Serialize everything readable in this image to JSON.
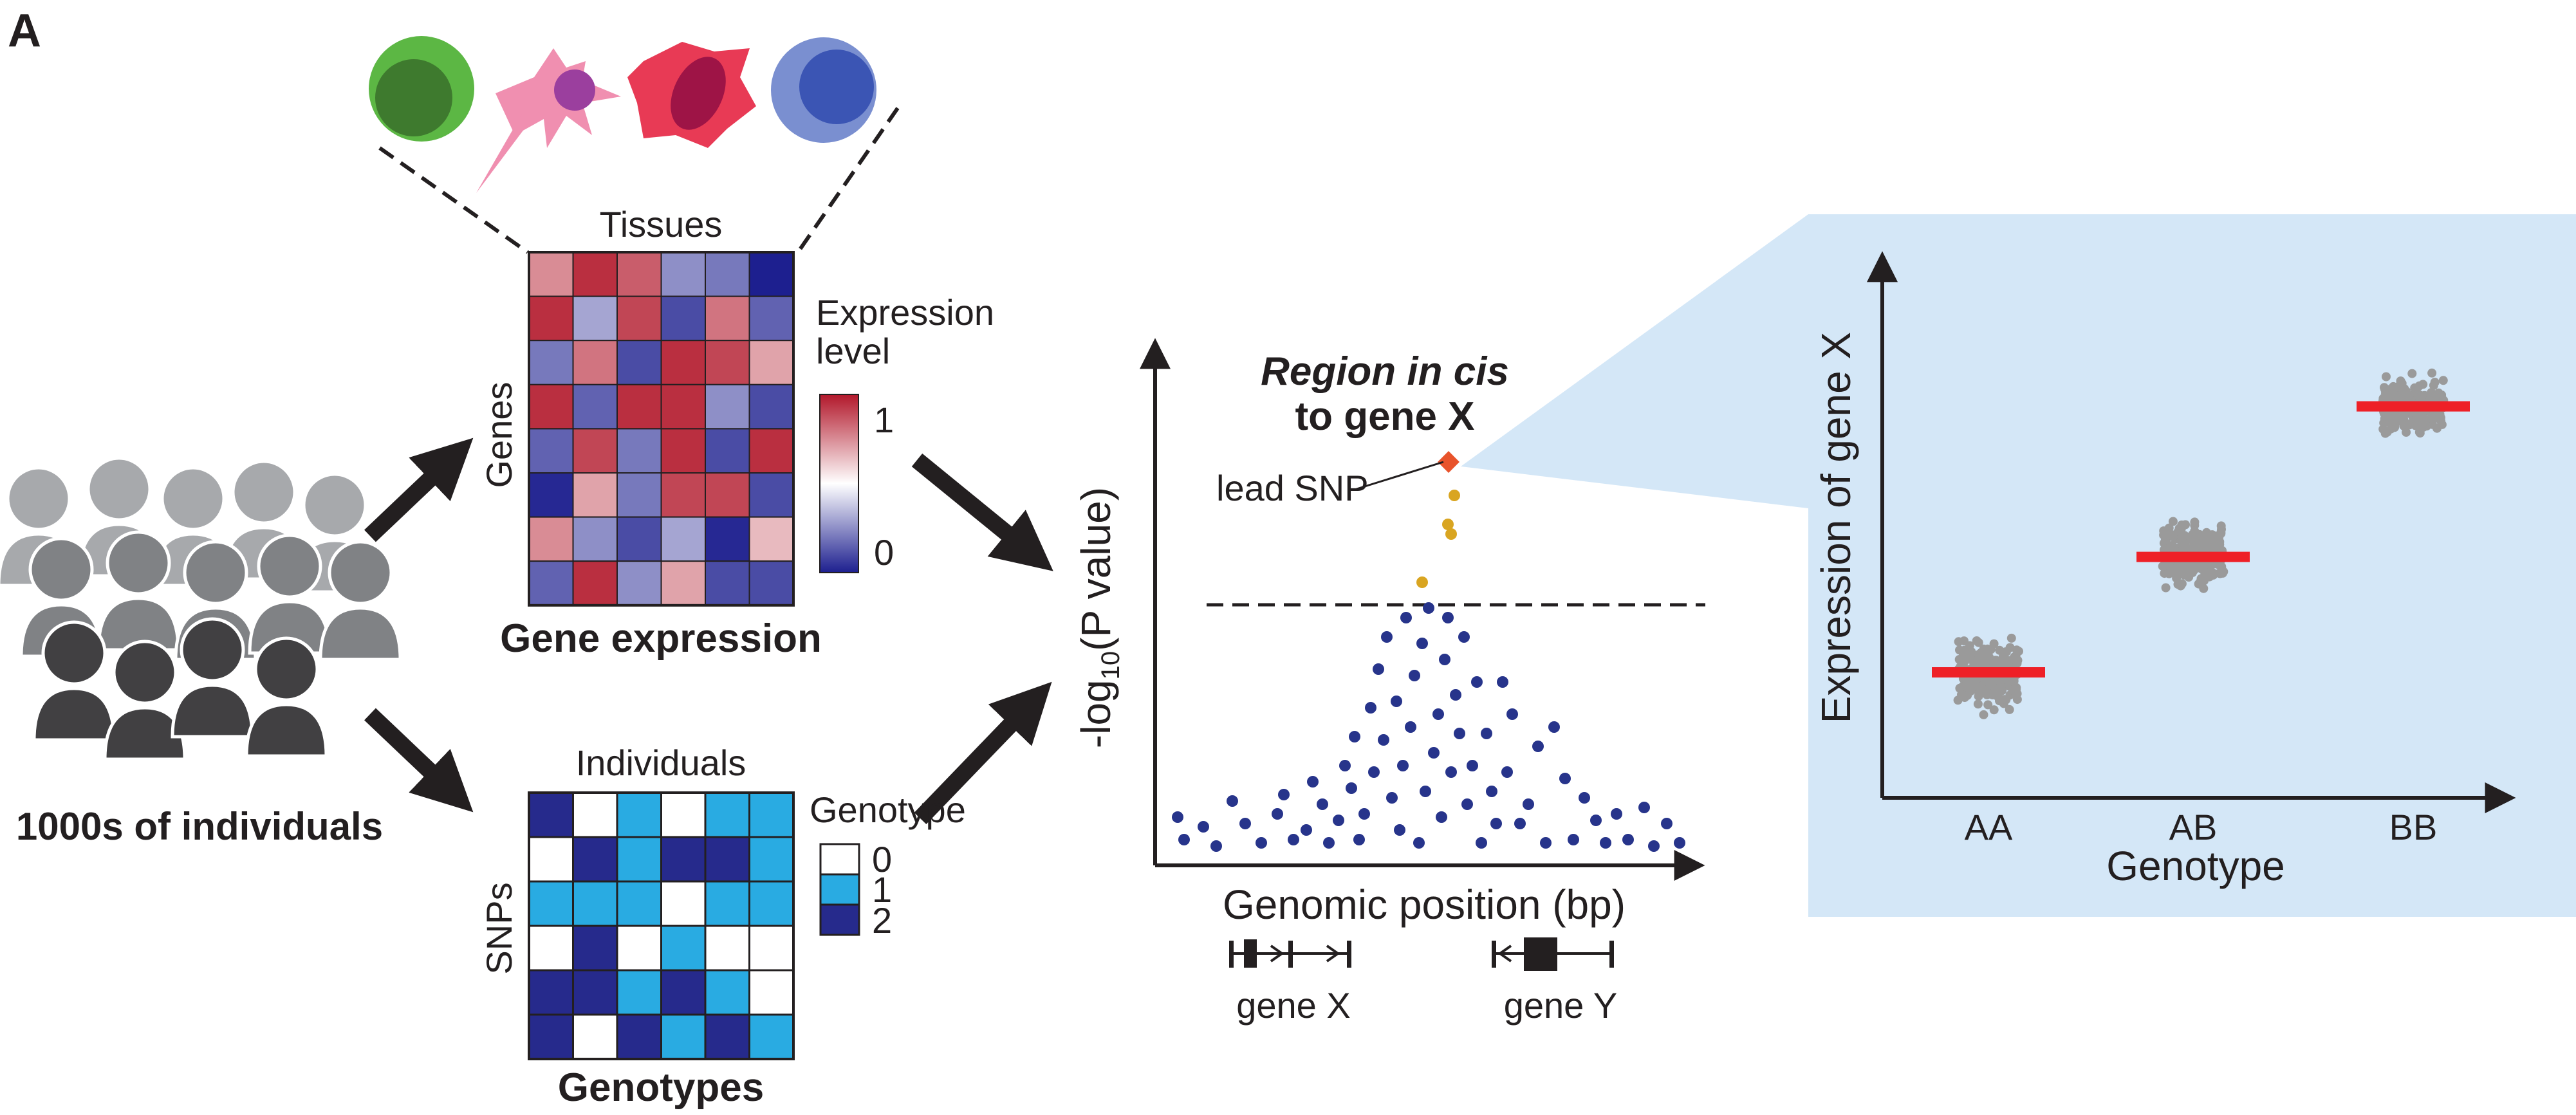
{
  "panel_label": "A",
  "population": {
    "label": "1000s of individuals"
  },
  "expression_matrix": {
    "top_label": "Tissues",
    "side_label": "Genes",
    "caption": "Gene expression",
    "legend_title_line1": "Expression",
    "legend_title_line2": "level",
    "legend_max": "1",
    "legend_min": "0",
    "colors": {
      "high": "#b2182b",
      "mid": "#ffffff",
      "low": "#1d1f8f"
    },
    "values": [
      [
        0.75,
        0.95,
        0.85,
        0.25,
        0.2,
        0.0
      ],
      [
        0.95,
        0.3,
        0.9,
        0.1,
        0.8,
        0.15
      ],
      [
        0.2,
        0.8,
        0.1,
        0.95,
        0.9,
        0.7
      ],
      [
        0.95,
        0.15,
        0.95,
        0.95,
        0.25,
        0.1
      ],
      [
        0.15,
        0.9,
        0.2,
        0.95,
        0.1,
        0.95
      ],
      [
        0.02,
        0.7,
        0.2,
        0.9,
        0.9,
        0.1
      ],
      [
        0.75,
        0.25,
        0.1,
        0.3,
        0.02,
        0.65
      ],
      [
        0.15,
        0.95,
        0.25,
        0.7,
        0.1,
        0.1
      ]
    ]
  },
  "genotype_matrix": {
    "top_label": "Individuals",
    "side_label": "SNPs",
    "caption": "Genotypes",
    "legend_title": "Genotype",
    "legend_items": [
      {
        "label": "0",
        "color": "#ffffff"
      },
      {
        "label": "1",
        "color": "#29abe2"
      },
      {
        "label": "2",
        "color": "#262a8c"
      }
    ],
    "values": [
      [
        2,
        0,
        1,
        0,
        1,
        1
      ],
      [
        0,
        2,
        1,
        2,
        2,
        1
      ],
      [
        1,
        1,
        1,
        0,
        1,
        1
      ],
      [
        0,
        2,
        0,
        1,
        0,
        0
      ],
      [
        2,
        2,
        1,
        2,
        1,
        0
      ],
      [
        2,
        0,
        2,
        1,
        2,
        1
      ]
    ]
  },
  "manhattan": {
    "title_part1": "Region ",
    "title_part2": "in cis",
    "title_line2": "to gene X",
    "ylabel": "-log",
    "ylabel_sub": "10",
    "ylabel_rest": "(P value)",
    "xlabel": "Genomic position (bp)",
    "lead_snp_label": "lead SNP",
    "gene_x_label": "gene X",
    "gene_y_label": "gene Y",
    "colors": {
      "dots": "#27348b",
      "significant": "#d9a521",
      "lead": "#e8532b"
    }
  },
  "chart_data": {
    "type": "scatter",
    "title": "",
    "xlabel": "Genotype",
    "ylabel": "Expression of gene X",
    "categories": [
      "AA",
      "AB",
      "BB"
    ],
    "means": [
      0.25,
      0.48,
      0.78
    ],
    "spread": [
      0.11,
      0.11,
      0.09
    ],
    "points_per_group": 260,
    "ylim": [
      0,
      1
    ],
    "colors": {
      "points": "#9a9a9a",
      "mean_bar": "#ee2027",
      "background": "#d4e7f7"
    }
  }
}
